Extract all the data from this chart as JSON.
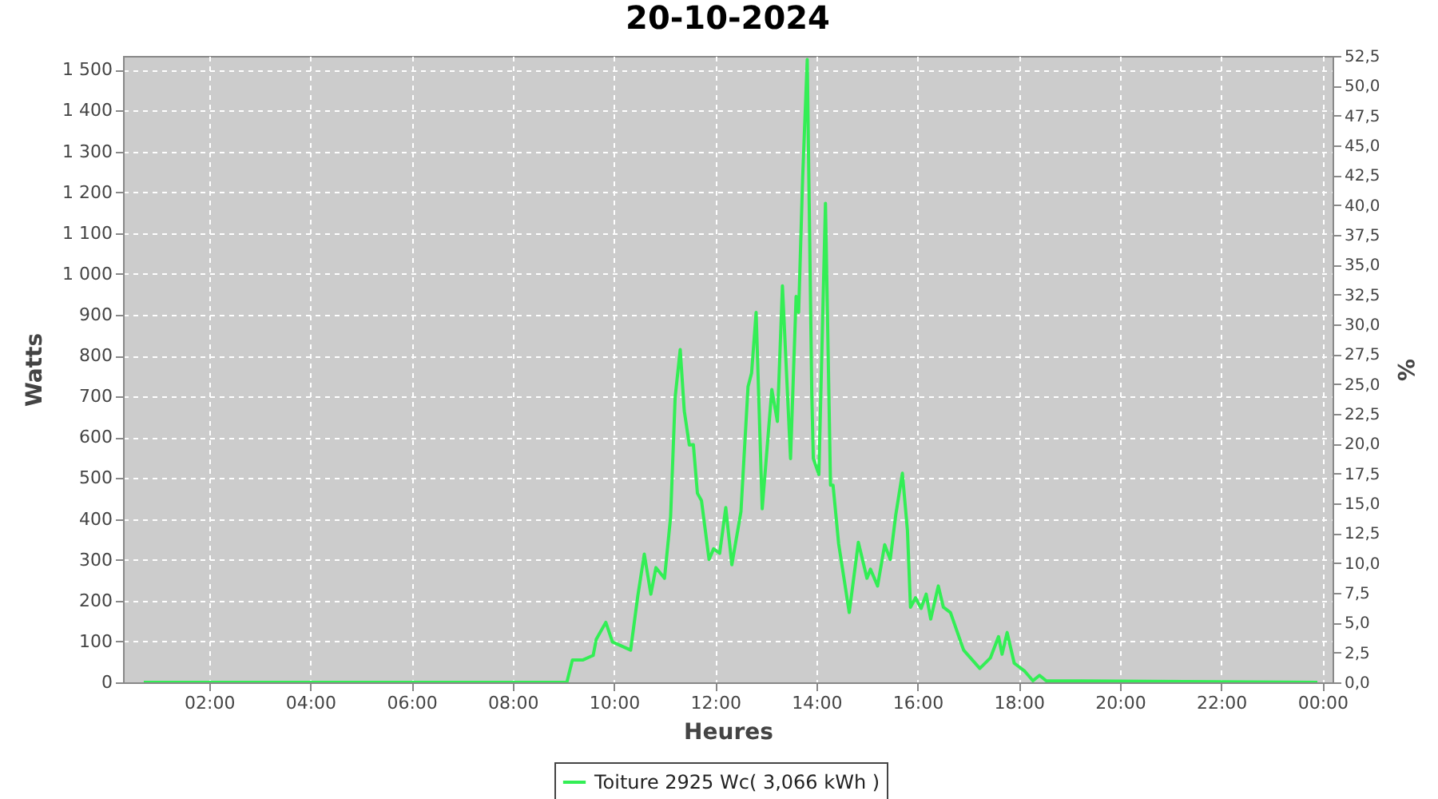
{
  "chart_data": {
    "type": "line",
    "title": "20-10-2024",
    "xlabel": "Heures",
    "ylabel": "Watts",
    "y2label": "%",
    "xlim": [
      0.3,
      24.2
    ],
    "xticks": [
      {
        "value": 2,
        "label": "02:00"
      },
      {
        "value": 4,
        "label": "04:00"
      },
      {
        "value": 6,
        "label": "06:00"
      },
      {
        "value": 8,
        "label": "08:00"
      },
      {
        "value": 10,
        "label": "10:00"
      },
      {
        "value": 12,
        "label": "12:00"
      },
      {
        "value": 14,
        "label": "14:00"
      },
      {
        "value": 16,
        "label": "16:00"
      },
      {
        "value": 18,
        "label": "18:00"
      },
      {
        "value": 20,
        "label": "20:00"
      },
      {
        "value": 22,
        "label": "22:00"
      },
      {
        "value": 24,
        "label": "00:00"
      }
    ],
    "ylim": [
      0,
      1534
    ],
    "yticks": [
      0,
      100,
      200,
      300,
      400,
      500,
      600,
      700,
      800,
      900,
      {
        "value": 1000,
        "label": "1 000"
      },
      {
        "value": 1100,
        "label": "1 100"
      },
      {
        "value": 1200,
        "label": "1 200"
      },
      {
        "value": 1300,
        "label": "1 300"
      },
      {
        "value": 1400,
        "label": "1 400"
      },
      {
        "value": 1500,
        "label": "1 500"
      }
    ],
    "y2lim": [
      0,
      52.5
    ],
    "y2ticks": [
      {
        "value": 0,
        "label": "0,0"
      },
      {
        "value": 2.5,
        "label": "2,5"
      },
      {
        "value": 5,
        "label": "5,0"
      },
      {
        "value": 7.5,
        "label": "7,5"
      },
      {
        "value": 10,
        "label": "10,0"
      },
      {
        "value": 12.5,
        "label": "12,5"
      },
      {
        "value": 15,
        "label": "15,0"
      },
      {
        "value": 17.5,
        "label": "17,5"
      },
      {
        "value": 20,
        "label": "20,0"
      },
      {
        "value": 22.5,
        "label": "22,5"
      },
      {
        "value": 25,
        "label": "25,0"
      },
      {
        "value": 27.5,
        "label": "27,5"
      },
      {
        "value": 30,
        "label": "30,0"
      },
      {
        "value": 32.5,
        "label": "32,5"
      },
      {
        "value": 35,
        "label": "35,0"
      },
      {
        "value": 37.5,
        "label": "37,5"
      },
      {
        "value": 40,
        "label": "40,0"
      },
      {
        "value": 42.5,
        "label": "42,5"
      },
      {
        "value": 45,
        "label": "45,0"
      },
      {
        "value": 47.5,
        "label": "47,5"
      },
      {
        "value": 50,
        "label": "50,0"
      },
      {
        "value": 52.5,
        "label": "52,5"
      }
    ],
    "grid": true,
    "legend": "bottom",
    "x": [
      0.71,
      9.07,
      9.18,
      9.39,
      9.59,
      9.65,
      9.84,
      9.97,
      10.33,
      10.47,
      10.6,
      10.73,
      10.83,
      11.0,
      11.12,
      11.21,
      11.31,
      11.39,
      11.49,
      11.57,
      11.65,
      11.73,
      11.88,
      11.97,
      12.09,
      12.21,
      12.33,
      12.51,
      12.65,
      12.72,
      12.81,
      12.93,
      13.12,
      13.23,
      13.33,
      13.49,
      13.6,
      13.65,
      13.73,
      13.82,
      13.91,
      13.94,
      14.05,
      14.18,
      14.28,
      14.33,
      14.44,
      14.65,
      14.83,
      15.0,
      15.07,
      15.21,
      15.35,
      15.46,
      15.57,
      15.7,
      15.8,
      15.86,
      15.96,
      16.07,
      16.17,
      16.26,
      16.41,
      16.51,
      16.65,
      16.91,
      17.23,
      17.44,
      17.6,
      17.67,
      17.77,
      17.91,
      18.12,
      18.28,
      18.41,
      18.54,
      23.9
    ],
    "series": [
      {
        "name": "Toiture 2925 Wc( 3,066 kWh )",
        "color": "#33ee55",
        "values": [
          0,
          0,
          55,
          55,
          66,
          105,
          147,
          99,
          79,
          210,
          314,
          216,
          281,
          255,
          405,
          698,
          815,
          665,
          581,
          582,
          463,
          445,
          301,
          327,
          316,
          428,
          288,
          418,
          724,
          757,
          906,
          425,
          717,
          639,
          971,
          548,
          945,
          906,
          1238,
          1525,
          704,
          548,
          509,
          1173,
          483,
          483,
          340,
          171,
          343,
          255,
          277,
          236,
          337,
          301,
          411,
          512,
          372,
          184,
          207,
          181,
          216,
          155,
          236,
          184,
          171,
          79,
          34,
          60,
          112,
          69,
          122,
          47,
          27,
          4,
          17,
          4,
          0
        ]
      }
    ]
  }
}
